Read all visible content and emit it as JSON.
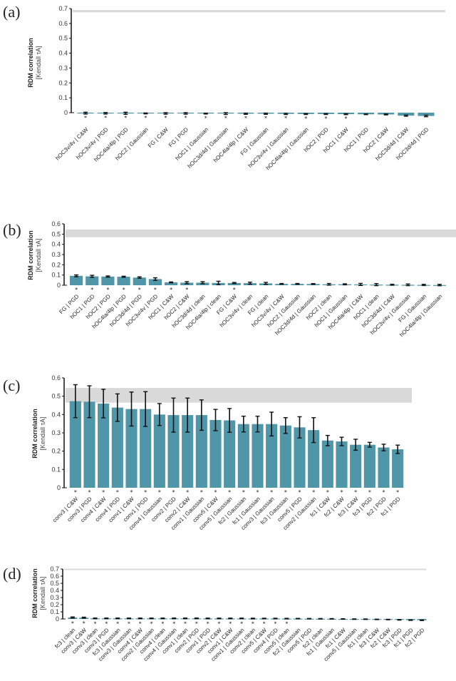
{
  "colors": {
    "bar": "#4e96a8",
    "ceiling": "#d9d9d9",
    "error": "#111111",
    "axis": "#111111"
  },
  "chart_data": [
    {
      "panel": "(a)",
      "type": "bar",
      "ylabel": "RDM correlation",
      "ylabel_sub": "[Kendall τA]",
      "ylim": [
        -0.03,
        0.7
      ],
      "yticks": [
        "0",
        "0.1",
        "0.2",
        "0.3",
        "0.4",
        "0.5",
        "0.6",
        "0.7"
      ],
      "noise_ceiling": [
        0.675,
        0.69
      ],
      "categories": [
        "hOC3v/4v | C&W",
        "hOC3v/4v | PGD",
        "hOC4la/4lp | PGD",
        "hOC2 | Gaussian",
        "FG | C&W",
        "FG | PGD",
        "hOC1 | Gaussian",
        "hOC3d/4d | Gaussian",
        "hOC4la/4lp | C&W",
        "FG | Gaussian",
        "hOC3v/4v | Gaussian",
        "hOC4la/4lp | Gaussian",
        "hOC2 | PGD",
        "hOC1 | C&W",
        "hOC1 | PGD",
        "hOC2 | C&W",
        "hOC3d/4d | C&W",
        "hOC3d/4d | PGD"
      ],
      "values": [
        -0.003,
        -0.004,
        -0.004,
        -0.005,
        -0.005,
        -0.005,
        -0.006,
        -0.006,
        -0.007,
        -0.007,
        -0.008,
        -0.009,
        -0.009,
        -0.01,
        -0.011,
        -0.012,
        -0.02,
        -0.022
      ],
      "errors": [
        0.006,
        0.005,
        0.007,
        0.003,
        0.005,
        0.005,
        0.003,
        0.006,
        0.004,
        0.004,
        0.004,
        0.003,
        0.003,
        0.003,
        0.002,
        0.003,
        0.004,
        0.005
      ],
      "significant": [
        true,
        true,
        true,
        true,
        true,
        true,
        true,
        true,
        true,
        true,
        true,
        true,
        true,
        true,
        false,
        false,
        false,
        false
      ]
    },
    {
      "panel": "(b)",
      "type": "bar",
      "ylabel": "RDM correlation",
      "ylabel_sub": "[Kendall τA]",
      "ylim": [
        0,
        0.6
      ],
      "yticks": [
        "0",
        "0.1",
        "0.2",
        "0.3",
        "0.4",
        "0.5",
        "0.6"
      ],
      "noise_ceiling": [
        0.47,
        0.545
      ],
      "categories": [
        "FG | PGD",
        "hOC1 | PGD",
        "hOC2 | PGD",
        "hOC4la/4lp | PGD",
        "hOC3d/4d | PGD",
        "hOC3v/4v | PGD",
        "hOC1 | C&W",
        "hOC2 | C&W",
        "hOC3d/4d | clean",
        "hOC4la/4lp | clean",
        "FG | C&W",
        "hOC3v/4v | clean",
        "FG | clean",
        "hOC3v/4v | C&W",
        "hOC2 | Gaussian",
        "hOC3d/4d | Gaussian",
        "hOC2 | clean",
        "hOC1 | Gaussian",
        "hOC4la/4lp | C&W",
        "hOC1 | clean",
        "hOC3d/4d | C&W",
        "hOC3v/4v | Gaussian",
        "FG | Gaussian",
        "hOC4la/4lp | Gaussian"
      ],
      "values": [
        0.092,
        0.087,
        0.085,
        0.083,
        0.075,
        0.06,
        0.028,
        0.025,
        0.025,
        0.022,
        0.022,
        0.02,
        0.018,
        0.013,
        0.013,
        0.012,
        0.009,
        0.009,
        0.008,
        0.006,
        0.005,
        0.004,
        0.003,
        0.002
      ],
      "errors": [
        0.009,
        0.01,
        0.006,
        0.005,
        0.007,
        0.013,
        0.004,
        0.01,
        0.01,
        0.017,
        0.005,
        0.01,
        0.01,
        0.004,
        0.004,
        0.004,
        0.008,
        0.005,
        0.01,
        0.01,
        0.005,
        0.008,
        0.006,
        0.007
      ],
      "significant": [
        true,
        true,
        true,
        true,
        true,
        true,
        true,
        true,
        false,
        false,
        true,
        false,
        false,
        false,
        false,
        false,
        false,
        false,
        false,
        false,
        false,
        false,
        false,
        false
      ]
    },
    {
      "panel": "(c)",
      "type": "bar",
      "ylabel": "RDM correlation",
      "ylabel_sub": "[Kendall τA]",
      "ylim": [
        0,
        0.6
      ],
      "yticks": [
        "0",
        "0.1",
        "0.2",
        "0.3",
        "0.4",
        "0.5",
        "0.6"
      ],
      "noise_ceiling": [
        0.465,
        0.545
      ],
      "categories": [
        "conv3 | C&W",
        "conv3 | PGD",
        "conv4 | C&W",
        "conv4 | PGD",
        "conv1 | C&W",
        "conv1 | PGD",
        "conv4 | Gaussian",
        "conv2 | PGD",
        "conv2 | C&W",
        "conv1 | Gaussian",
        "conv5 | C&W",
        "conv5 | Gaussian",
        "fc2 | Gaussian",
        "fc1 | Gaussian",
        "conv3 | Gaussian",
        "fc3 | Gaussian",
        "conv5 | PGD",
        "conv2 | Gaussian",
        "fc1 | C&W",
        "fc2 | C&W",
        "fc3 | C&W",
        "fc3 | PGD",
        "fc2 | PGD",
        "fc1 | PGD"
      ],
      "values": [
        0.473,
        0.47,
        0.46,
        0.438,
        0.43,
        0.43,
        0.4,
        0.397,
        0.397,
        0.397,
        0.37,
        0.368,
        0.348,
        0.348,
        0.348,
        0.34,
        0.33,
        0.315,
        0.258,
        0.253,
        0.235,
        0.235,
        0.22,
        0.21
      ],
      "errors": [
        0.09,
        0.087,
        0.078,
        0.075,
        0.093,
        0.095,
        0.06,
        0.093,
        0.093,
        0.083,
        0.058,
        0.065,
        0.043,
        0.043,
        0.065,
        0.043,
        0.058,
        0.068,
        0.028,
        0.023,
        0.03,
        0.013,
        0.018,
        0.023
      ],
      "significant": [
        true,
        true,
        true,
        true,
        true,
        true,
        true,
        true,
        true,
        true,
        true,
        true,
        true,
        true,
        true,
        true,
        true,
        true,
        true,
        true,
        true,
        true,
        true,
        true
      ]
    },
    {
      "panel": "(d)",
      "type": "bar",
      "ylabel": "RDM correlation",
      "ylabel_sub": "[Kendall τA]",
      "ylim": [
        -0.03,
        0.7
      ],
      "yticks": [
        "0",
        "0.1",
        "0.2",
        "0.3",
        "0.4",
        "0.5",
        "0.6",
        "0.7"
      ],
      "noise_ceiling": [
        0.695,
        0.705
      ],
      "categories": [
        "fc3 | clean",
        "conv3 | C&W",
        "conv3 | clean",
        "conv3 | PGD",
        "fc3 | Gaussian",
        "conv3 | Gaussian",
        "conv4 | C&W",
        "conv2 | Gaussian",
        "conv4 | clean",
        "conv4 | Gaussian",
        "conv1 | clean",
        "conv2 | PGD",
        "conv1 | PGD",
        "conv2 | C&W",
        "conv1 | C&W",
        "conv1 | Gaussian",
        "conv2 | clean",
        "conv5 | C&W",
        "conv4 | PGD",
        "conv5 | clean",
        "fc2 | Gaussian",
        "conv5 | PGD",
        "fc2 | clean",
        "fc1 | Gaussian",
        "fc1 | C&W",
        "conv5 | Gaussian",
        "fc1 | clean",
        "fc3 | C&W",
        "fc2 | C&W",
        "fc3 | PGD",
        "fc1 | PGD",
        "fc2 | PGD"
      ],
      "values": [
        0.02,
        0.018,
        0.008,
        0.008,
        0.008,
        0.008,
        0.008,
        0.008,
        0.008,
        0.008,
        0.008,
        0.008,
        0.007,
        0.007,
        0.007,
        0.007,
        0.006,
        0.006,
        0.006,
        0.005,
        0.005,
        0.004,
        0.003,
        0.002,
        0.0,
        -0.002,
        -0.003,
        -0.006,
        -0.008,
        -0.012,
        -0.016,
        -0.018
      ],
      "errors": [
        0.008,
        0.007,
        0.005,
        0.005,
        0.005,
        0.005,
        0.005,
        0.005,
        0.005,
        0.005,
        0.005,
        0.005,
        0.005,
        0.005,
        0.005,
        0.005,
        0.005,
        0.004,
        0.004,
        0.004,
        0.003,
        0.003,
        0.003,
        0.003,
        0.003,
        0.003,
        0.003,
        0.003,
        0.003,
        0.004,
        0.004,
        0.004
      ],
      "significant": [
        true,
        true,
        true,
        true,
        true,
        true,
        true,
        true,
        true,
        true,
        true,
        true,
        true,
        true,
        true,
        true,
        true,
        true,
        true,
        true,
        false,
        false,
        false,
        false,
        false,
        false,
        false,
        false,
        false,
        false,
        false,
        false
      ]
    }
  ]
}
